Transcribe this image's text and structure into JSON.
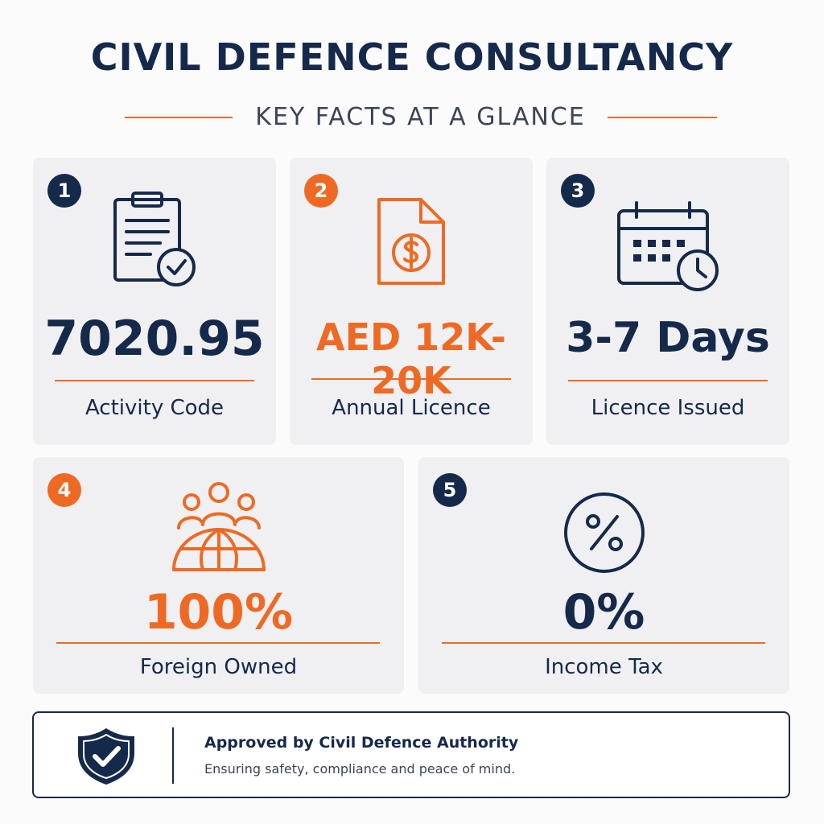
{
  "header": {
    "title": "CIVIL DEFENCE CONSULTANCY",
    "subtitle": "KEY FACTS AT A GLANCE"
  },
  "colors": {
    "navy": "#15294b",
    "orange": "#ee6a24",
    "card_bg": "#f0f0f2"
  },
  "facts": [
    {
      "number": "1",
      "icon": "clipboard-check-icon",
      "value": "7020.95",
      "label": "Activity Code"
    },
    {
      "number": "2",
      "icon": "document-dollar-icon",
      "value": "AED 12K-20K",
      "label": "Annual Licence"
    },
    {
      "number": "3",
      "icon": "calendar-clock-icon",
      "value": "3-7 Days",
      "label": "Licence Issued"
    },
    {
      "number": "4",
      "icon": "people-globe-icon",
      "value": "100%",
      "label": "Foreign Owned"
    },
    {
      "number": "5",
      "icon": "percent-circle-icon",
      "value": "0%",
      "label": "Income Tax"
    }
  ],
  "footer": {
    "icon": "shield-check-icon",
    "heading": "Approved by Civil Defence Authority",
    "text": "Ensuring safety, compliance and peace of mind."
  }
}
